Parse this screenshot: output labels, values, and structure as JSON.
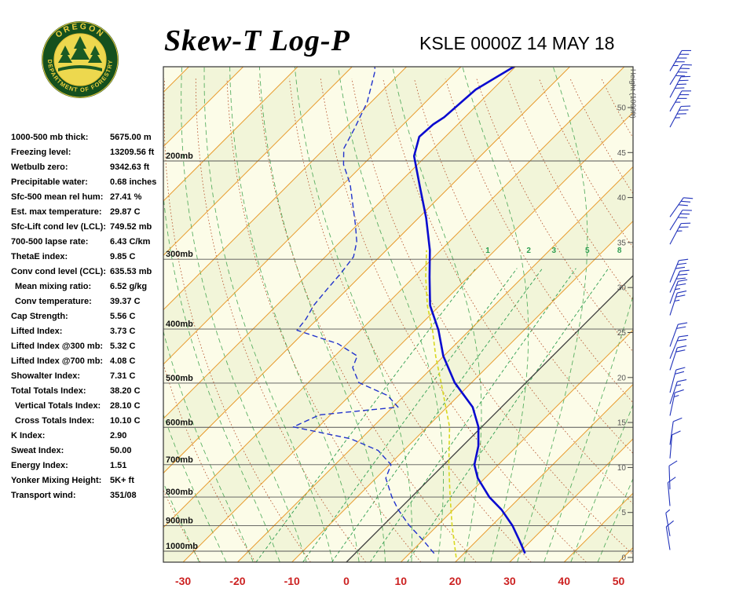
{
  "header": {
    "title": "Skew-T Log-P",
    "station": "KSLE 0000Z 14 MAY 18",
    "logo": {
      "top": "OREGON",
      "bottom": "DEPARTMENT OF FORESTRY"
    }
  },
  "indices": [
    {
      "label": "1000-500 mb thick:",
      "value": "5675.00 m",
      "indent": false
    },
    {
      "label": "Freezing level:",
      "value": "13209.56 ft",
      "indent": false
    },
    {
      "label": "Wetbulb zero:",
      "value": "9342.63 ft",
      "indent": false
    },
    {
      "label": "Precipitable water:",
      "value": "0.68 inches",
      "indent": false
    },
    {
      "label": "Sfc-500 mean rel hum:",
      "value": "27.41 %",
      "indent": false
    },
    {
      "label": "Est. max temperature:",
      "value": "29.87 C",
      "indent": false
    },
    {
      "label": "Sfc-Lift cond lev (LCL):",
      "value": "749.52 mb",
      "indent": false
    },
    {
      "label": "700-500 lapse rate:",
      "value": "6.43 C/km",
      "indent": false
    },
    {
      "label": "ThetaE index:",
      "value": "9.85 C",
      "indent": false
    },
    {
      "label": "Conv cond level (CCL):",
      "value": "635.53 mb",
      "indent": false
    },
    {
      "label": "Mean mixing ratio:",
      "value": "6.52 g/kg",
      "indent": true
    },
    {
      "label": "Conv temperature:",
      "value": "39.37 C",
      "indent": true
    },
    {
      "label": "Cap Strength:",
      "value": "5.56 C",
      "indent": false
    },
    {
      "label": "Lifted Index:",
      "value": "3.73 C",
      "indent": false
    },
    {
      "label": "Lifted Index @300 mb:",
      "value": "5.32 C",
      "indent": false
    },
    {
      "label": "Lifted Index @700 mb:",
      "value": "4.08 C",
      "indent": false
    },
    {
      "label": "Showalter Index:",
      "value": "7.31 C",
      "indent": false
    },
    {
      "label": "Total Totals Index:",
      "value": "38.20 C",
      "indent": false
    },
    {
      "label": "Vertical Totals Index:",
      "value": "28.10 C",
      "indent": true
    },
    {
      "label": "Cross Totals Index:",
      "value": "10.10 C",
      "indent": true
    },
    {
      "label": "K Index:",
      "value": "2.90",
      "indent": false
    },
    {
      "label": "Sweat Index:",
      "value": "50.00",
      "indent": false
    },
    {
      "label": "Energy Index:",
      "value": "1.51",
      "indent": false
    },
    {
      "label": "Yonker Mixing Height:",
      "value": "5K+ ft",
      "indent": false
    },
    {
      "label": "Transport wind:",
      "value": "351/08",
      "indent": false
    }
  ],
  "chart_data": {
    "type": "line",
    "title": "Skew-T Log-P",
    "subtitle": "KSLE 0000Z 14 MAY 18",
    "pressure_axis": {
      "levels_mb": [
        200,
        300,
        400,
        500,
        600,
        700,
        800,
        900,
        1000
      ],
      "label_suffix": "mb"
    },
    "temp_axis": {
      "ticks_c": [
        -30,
        -20,
        -10,
        0,
        10,
        20,
        30,
        40,
        50
      ]
    },
    "height_axis": {
      "title": "Height (1000ft)",
      "labels_kft": [
        50,
        45,
        40,
        35,
        30,
        25,
        20,
        15,
        10,
        5,
        0
      ]
    },
    "mixing_ratio_labels_gkg": [
      1,
      2,
      3,
      5,
      8
    ],
    "isotherms_c": {
      "min": -120,
      "max": 50,
      "step": 10
    },
    "dry_adiabats_c": {
      "min": -40,
      "max": 140,
      "step": 10
    },
    "moist_adiabats_c": {
      "min": -30,
      "max": 45,
      "step": 5
    },
    "series": [
      {
        "name": "temperature",
        "points_p_t": [
          [
            1009,
            31.2
          ],
          [
            961,
            28.1
          ],
          [
            900,
            23.8
          ],
          [
            843,
            18.9
          ],
          [
            800,
            14.3
          ],
          [
            740,
            8.7
          ],
          [
            700,
            5.6
          ],
          [
            648,
            2.9
          ],
          [
            599,
            -0.6
          ],
          [
            552,
            -5.3
          ],
          [
            499,
            -13.1
          ],
          [
            447,
            -20.1
          ],
          [
            402,
            -25.7
          ],
          [
            363,
            -31.8
          ],
          [
            323,
            -37.1
          ],
          [
            289,
            -42.0
          ],
          [
            253,
            -48.6
          ],
          [
            222,
            -55.6
          ],
          [
            196,
            -62.2
          ],
          [
            181,
            -64.8
          ],
          [
            172,
            -64.5
          ],
          [
            167,
            -63.8
          ],
          [
            149,
            -63.1
          ],
          [
            133,
            -59.7
          ]
        ]
      },
      {
        "name": "dewpoint",
        "points_p_t": [
          [
            1009,
            14.5
          ],
          [
            961,
            10.5
          ],
          [
            897,
            4.6
          ],
          [
            843,
            -0.1
          ],
          [
            800,
            -3.6
          ],
          [
            740,
            -8.2
          ],
          [
            700,
            -9.7
          ],
          [
            660,
            -14.7
          ],
          [
            629,
            -21.9
          ],
          [
            599,
            -34.6
          ],
          [
            570,
            -32.0
          ],
          [
            552,
            -19.0
          ],
          [
            526,
            -23.1
          ],
          [
            499,
            -30.7
          ],
          [
            469,
            -34.6
          ],
          [
            447,
            -35.9
          ],
          [
            425,
            -41.7
          ],
          [
            402,
            -51.7
          ],
          [
            384,
            -52.1
          ],
          [
            363,
            -53.2
          ],
          [
            340,
            -53.7
          ],
          [
            318,
            -54.1
          ],
          [
            297,
            -54.8
          ],
          [
            279,
            -57.0
          ],
          [
            261,
            -60.2
          ],
          [
            241,
            -64.2
          ],
          [
            220,
            -68.8
          ],
          [
            203,
            -73.6
          ],
          [
            190,
            -76.5
          ],
          [
            175,
            -78.2
          ],
          [
            157,
            -80.7
          ],
          [
            138,
            -85.0
          ],
          [
            134,
            -86.4
          ]
        ]
      },
      {
        "name": "wetbulb",
        "points_p_t": [
          [
            1026,
            19.3
          ],
          [
            900,
            12.7
          ],
          [
            800,
            7.1
          ],
          [
            700,
            0.9
          ],
          [
            599,
            -5.9
          ],
          [
            499,
            -15.6
          ],
          [
            447,
            -21.5
          ],
          [
            402,
            -26.8
          ],
          [
            363,
            -32.3
          ],
          [
            323,
            -37.8
          ],
          [
            289,
            -42.6
          ]
        ]
      }
    ],
    "wind_barbs": [
      {
        "p": 138,
        "dir": 30,
        "spd": 45
      },
      {
        "p": 146,
        "dir": 32,
        "spd": 40
      },
      {
        "p": 154,
        "dir": 28,
        "spd": 40
      },
      {
        "p": 163,
        "dir": 30,
        "spd": 35
      },
      {
        "p": 174,
        "dir": 28,
        "spd": 35
      },
      {
        "p": 252,
        "dir": 35,
        "spd": 30
      },
      {
        "p": 266,
        "dir": 32,
        "spd": 28
      },
      {
        "p": 282,
        "dir": 28,
        "spd": 25
      },
      {
        "p": 330,
        "dir": 22,
        "spd": 30
      },
      {
        "p": 344,
        "dir": 25,
        "spd": 28
      },
      {
        "p": 360,
        "dir": 20,
        "spd": 25
      },
      {
        "p": 378,
        "dir": 18,
        "spd": 25
      },
      {
        "p": 430,
        "dir": 20,
        "spd": 22
      },
      {
        "p": 452,
        "dir": 22,
        "spd": 20
      },
      {
        "p": 474,
        "dir": 18,
        "spd": 20
      },
      {
        "p": 520,
        "dir": 15,
        "spd": 18
      },
      {
        "p": 545,
        "dir": 18,
        "spd": 15
      },
      {
        "p": 572,
        "dir": 12,
        "spd": 15
      },
      {
        "p": 645,
        "dir": 8,
        "spd": 12
      },
      {
        "p": 682,
        "dir": 5,
        "spd": 10
      },
      {
        "p": 775,
        "dir": 358,
        "spd": 10
      },
      {
        "p": 830,
        "dir": 355,
        "spd": 8
      },
      {
        "p": 940,
        "dir": 350,
        "spd": 5
      },
      {
        "p": 995,
        "dir": 351,
        "spd": 8
      }
    ],
    "colors": {
      "background": "#FCFCE8",
      "band": "#F2F5D9",
      "isotherm": "#E89B2E",
      "zero_isotherm": "#3A3A3A",
      "dry_adiabat": "#B5502A",
      "moist_adiabat": "#3FA34D",
      "mixing_ratio": "#2E9E50",
      "pressure_line": "#555555",
      "pressure_label": "#111111",
      "axis_temp_label": "#CC2222",
      "height_label": "#555555",
      "temperature_trace": "#0A0ACF",
      "dewpoint_trace": "#2233CC",
      "wetbulb_trace": "#D8D820",
      "wind_barb": "#2233BB",
      "border": "#333333"
    }
  }
}
